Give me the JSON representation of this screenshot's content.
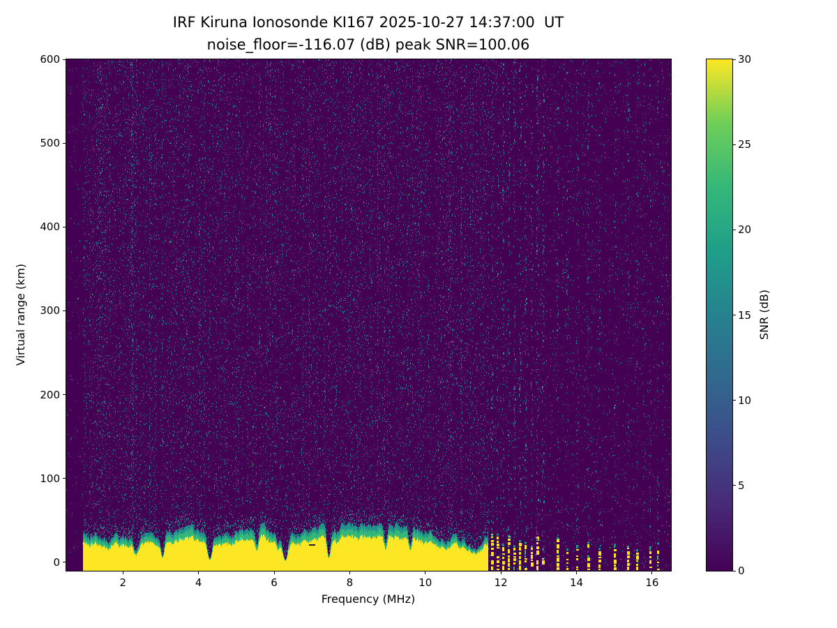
{
  "chart_data": {
    "type": "heatmap",
    "title": "IRF Kiruna Ionosonde KI167 2025-10-27 14:37:00  UT",
    "subtitle": "noise_floor=-116.07 (dB) peak SNR=100.06",
    "station": "IRF Kiruna Ionosonde KI167",
    "timestamp_ut": "2025-10-27 14:37:00",
    "noise_floor_db": -116.07,
    "peak_snr_db": 100.06,
    "xlabel": "Frequency (MHz)",
    "ylabel": "Virtual range (km)",
    "colorbar_label": "SNR (dB)",
    "xlim": [
      0.5,
      16.5
    ],
    "ylim": [
      -10,
      600
    ],
    "clim": [
      0,
      30
    ],
    "x_ticks": [
      2,
      4,
      6,
      8,
      10,
      12,
      14,
      16
    ],
    "y_ticks": [
      0,
      100,
      200,
      300,
      400,
      500,
      600
    ],
    "colorbar_ticks": [
      0,
      5,
      10,
      15,
      20,
      25,
      30
    ],
    "colormap": "viridis",
    "colormap_stops": [
      [
        0,
        "#440154"
      ],
      [
        0.125,
        "#482878"
      ],
      [
        0.25,
        "#3e4a89"
      ],
      [
        0.375,
        "#31688e"
      ],
      [
        0.5,
        "#26828e"
      ],
      [
        0.625,
        "#1f9e89"
      ],
      [
        0.75,
        "#35b779"
      ],
      [
        0.875,
        "#6ece58"
      ],
      [
        1,
        "#fde725"
      ]
    ],
    "grid": false,
    "seed": 167,
    "features": {
      "background_noise": {
        "description": "low-level speckle noise 0-12 dB with vertical striping",
        "snr_db_range": [
          0,
          12
        ],
        "boosted_freqs": [
          1.5,
          2.25,
          3.72,
          6.05,
          9.05,
          10.65
        ]
      },
      "ground_band": {
        "description": "saturated near-range echo band at ~30 dB from ~1 to ~11.65 MHz with jagged top and narrow notches",
        "freq_start": 0.95,
        "freq_end": 11.65,
        "top_km_mean": 34,
        "top_km_jitter": 13,
        "dip_freqs": [
          2.35,
          3.05,
          4.3,
          5.55,
          6.3,
          7.45,
          8.95,
          9.6,
          11.3
        ],
        "dip_depths": [
          0.5,
          0.82,
          0.85,
          0.45,
          0.9,
          0.82,
          0.5,
          0.5,
          0.35
        ],
        "dip_widths": [
          0.06,
          0.07,
          0.08,
          0.06,
          0.07,
          0.07,
          0.06,
          0.06,
          0.15
        ],
        "dark_dashes": [
          {
            "f": 7.0,
            "km": 22
          }
        ]
      },
      "interference_stripes": {
        "description": "broken vertical RFI columns above 11.7 MHz with dashed saturated bases",
        "freqs": [
          11.75,
          11.9,
          12.05,
          12.2,
          12.35,
          12.5,
          12.65,
          12.8,
          12.95,
          13.1,
          13.5,
          13.75,
          14.0,
          14.3,
          14.6,
          15.0,
          15.35,
          15.6,
          15.95,
          16.15
        ],
        "base_height_km": 24
      },
      "echo_trace": {
        "description": "faint oblique ionospheric echo trace rising with frequency",
        "f_mhz": [
          4.4,
          5.0,
          5.6,
          6.2,
          6.8,
          7.3,
          7.8,
          8.2,
          8.6,
          8.9
        ],
        "range_km": [
          230,
          243,
          256,
          269,
          284,
          299,
          314,
          329,
          343,
          355
        ]
      }
    }
  }
}
